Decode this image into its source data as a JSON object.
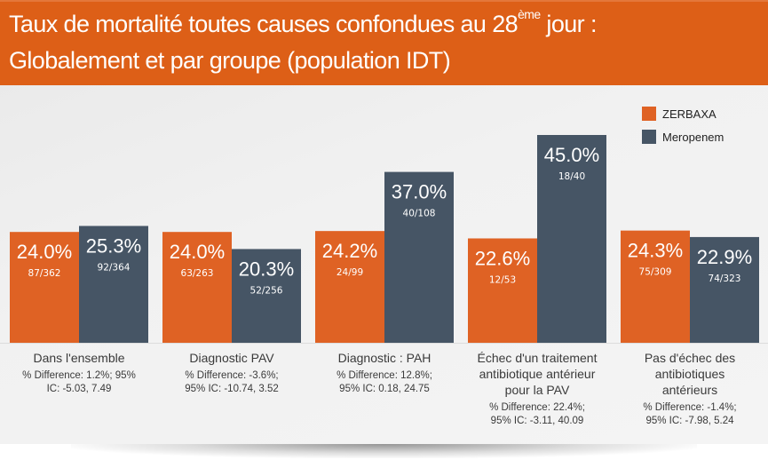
{
  "header": {
    "title_line1_pre": "Taux de mortalité toutes causes confondues au 28",
    "title_line1_sup": "ème",
    "title_line1_post": " jour :",
    "title_line2": "Globalement et par groupe (population IDT)"
  },
  "colors": {
    "header_bg": "#dd5f17",
    "zerbaxa": "#df6224",
    "meropenem": "#465565"
  },
  "legend": [
    {
      "label": "ZERBAXA",
      "color": "#df6224"
    },
    {
      "label": "Meropenem",
      "color": "#465565"
    }
  ],
  "chart_data": {
    "type": "bar",
    "title": "Taux de mortalité toutes causes confondues au 28ème jour : Globalement et par groupe (population IDT)",
    "xlabel": "",
    "ylabel": "",
    "ylim": [
      0,
      50
    ],
    "grid": false,
    "legend_position": "top-right",
    "categories": [
      "Dans l'ensemble",
      "Diagnostic PAV",
      "Diagnostic : PAH",
      "Échec d'un traitement antibiotique antérieur pour la PAV",
      "Pas d'échec des antibiotiques antérieurs"
    ],
    "category_lines": [
      [
        "Dans l'ensemble"
      ],
      [
        "Diagnostic PAV"
      ],
      [
        "Diagnostic : PAH"
      ],
      [
        "Échec d'un traitement",
        "antibiotique antérieur",
        "pour la PAV"
      ],
      [
        "Pas d'échec des",
        "antibiotiques",
        "antérieurs"
      ]
    ],
    "stats_lines": [
      [
        "% Difference: 1.2%; 95%",
        "IC: -5.03, 7.49"
      ],
      [
        "% Difference: -3.6%;",
        "95% IC: -10.74, 3.52"
      ],
      [
        "% Difference: 12.8%;",
        "95% IC: 0.18, 24.75"
      ],
      [
        "% Difference: 22.4%;",
        "95% IC: -3.11, 40.09"
      ],
      [
        "% Difference: -1.4%;",
        "95% IC: -7.98, 5.24"
      ]
    ],
    "series": [
      {
        "name": "ZERBAXA",
        "values": [
          24.0,
          24.0,
          24.2,
          22.6,
          24.3
        ],
        "labels": [
          "24.0%",
          "24.0%",
          "24.2%",
          "22.6%",
          "24.3%"
        ],
        "fractions": [
          "87/362",
          "63/263",
          "24/99",
          "12/53",
          "75/309"
        ]
      },
      {
        "name": "Meropenem",
        "values": [
          25.3,
          20.3,
          37.0,
          45.0,
          22.9
        ],
        "labels": [
          "25.3%",
          "20.3%",
          "37.0%",
          "45.0%",
          "22.9%"
        ],
        "fractions": [
          "92/364",
          "52/256",
          "40/108",
          "18/40",
          "74/323"
        ]
      }
    ]
  }
}
